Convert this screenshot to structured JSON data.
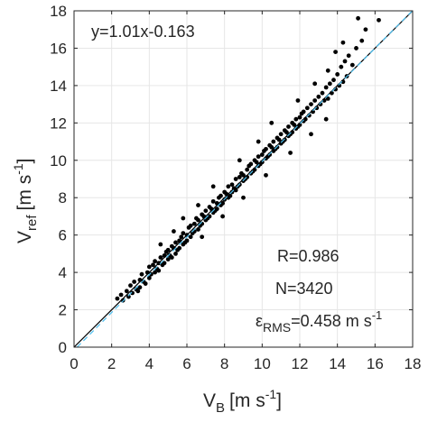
{
  "chart_data": {
    "type": "scatter",
    "xlabel": {
      "main": "V",
      "sub": "B",
      "unit": "[m s",
      "exp": "-1",
      "close": "]"
    },
    "ylabel": {
      "main": "V",
      "sub": "ref",
      "unit": "[m s",
      "exp": "-1",
      "close": "]"
    },
    "xlim": [
      0,
      18
    ],
    "ylim": [
      0,
      18
    ],
    "xticks": [
      "0",
      "2",
      "4",
      "6",
      "8",
      "10",
      "12",
      "14",
      "16",
      "18"
    ],
    "yticks": [
      "0",
      "2",
      "4",
      "6",
      "8",
      "10",
      "12",
      "14",
      "16",
      "18"
    ],
    "grid": true,
    "fit_equation": "y=1.01x-0.163",
    "fit": {
      "slope": 1.01,
      "intercept": -0.163
    },
    "stats": {
      "r": "R=0.986",
      "n": "N=3420",
      "rms_symbol": "ε",
      "rms_sub": "RMS",
      "rms_value": "=0.458 m s",
      "rms_exp": "-1"
    },
    "marker_color": "#000000",
    "fit_line_color": "#4dbeee",
    "identity_line_color": "#000000",
    "points": [
      [
        2.3,
        2.6
      ],
      [
        2.5,
        2.8
      ],
      [
        2.6,
        2.5
      ],
      [
        2.8,
        3.0
      ],
      [
        2.9,
        2.7
      ],
      [
        3.0,
        3.3
      ],
      [
        3.1,
        2.9
      ],
      [
        3.2,
        3.5
      ],
      [
        3.3,
        3.1
      ],
      [
        3.4,
        3.0
      ],
      [
        3.5,
        3.6
      ],
      [
        3.5,
        3.2
      ],
      [
        3.6,
        3.9
      ],
      [
        3.7,
        3.5
      ],
      [
        3.8,
        3.4
      ],
      [
        3.9,
        4.0
      ],
      [
        4.0,
        3.7
      ],
      [
        4.0,
        4.3
      ],
      [
        4.1,
        3.9
      ],
      [
        4.2,
        4.4
      ],
      [
        4.3,
        4.0
      ],
      [
        4.3,
        4.6
      ],
      [
        4.4,
        4.2
      ],
      [
        4.5,
        4.5
      ],
      [
        4.5,
        4.1
      ],
      [
        4.6,
        4.8
      ],
      [
        4.7,
        4.4
      ],
      [
        4.8,
        4.9
      ],
      [
        4.8,
        4.5
      ],
      [
        4.9,
        5.1
      ],
      [
        5.0,
        4.7
      ],
      [
        5.0,
        5.2
      ],
      [
        5.1,
        4.9
      ],
      [
        5.2,
        5.4
      ],
      [
        5.2,
        4.8
      ],
      [
        5.3,
        5.3
      ],
      [
        5.4,
        5.0
      ],
      [
        5.4,
        5.6
      ],
      [
        5.5,
        5.2
      ],
      [
        5.6,
        5.7
      ],
      [
        5.6,
        5.3
      ],
      [
        5.7,
        5.9
      ],
      [
        5.8,
        5.5
      ],
      [
        5.8,
        6.1
      ],
      [
        5.9,
        5.6
      ],
      [
        6.0,
        6.0
      ],
      [
        6.0,
        5.7
      ],
      [
        6.1,
        6.4
      ],
      [
        6.2,
        5.9
      ],
      [
        6.2,
        6.5
      ],
      [
        6.3,
        6.1
      ],
      [
        6.4,
        6.6
      ],
      [
        6.4,
        6.2
      ],
      [
        6.5,
        6.9
      ],
      [
        6.6,
        6.3
      ],
      [
        6.6,
        6.8
      ],
      [
        6.7,
        6.5
      ],
      [
        6.8,
        7.1
      ],
      [
        6.8,
        6.6
      ],
      [
        6.9,
        7.0
      ],
      [
        7.0,
        6.8
      ],
      [
        7.0,
        7.3
      ],
      [
        7.1,
        6.9
      ],
      [
        7.2,
        7.5
      ],
      [
        7.2,
        7.0
      ],
      [
        7.3,
        7.4
      ],
      [
        7.4,
        7.2
      ],
      [
        7.4,
        7.8
      ],
      [
        7.5,
        7.3
      ],
      [
        7.6,
        7.7
      ],
      [
        7.6,
        7.4
      ],
      [
        7.7,
        8.0
      ],
      [
        7.8,
        7.6
      ],
      [
        7.8,
        8.1
      ],
      [
        7.9,
        7.7
      ],
      [
        8.0,
        8.3
      ],
      [
        8.0,
        7.9
      ],
      [
        8.1,
        8.2
      ],
      [
        8.2,
        8.0
      ],
      [
        8.2,
        8.6
      ],
      [
        8.3,
        8.1
      ],
      [
        8.4,
        8.7
      ],
      [
        8.4,
        8.3
      ],
      [
        8.5,
        8.5
      ],
      [
        8.6,
        8.4
      ],
      [
        8.6,
        9.0
      ],
      [
        8.7,
        8.6
      ],
      [
        8.8,
        9.1
      ],
      [
        8.8,
        8.7
      ],
      [
        8.9,
        9.3
      ],
      [
        9.0,
        8.9
      ],
      [
        9.0,
        9.2
      ],
      [
        9.1,
        9.0
      ],
      [
        9.2,
        9.5
      ],
      [
        9.2,
        9.1
      ],
      [
        9.3,
        9.7
      ],
      [
        9.4,
        9.3
      ],
      [
        9.4,
        9.8
      ],
      [
        9.5,
        9.4
      ],
      [
        9.6,
        10.0
      ],
      [
        9.6,
        9.5
      ],
      [
        9.7,
        9.9
      ],
      [
        9.8,
        9.7
      ],
      [
        9.8,
        10.2
      ],
      [
        9.9,
        9.8
      ],
      [
        10.0,
        10.3
      ],
      [
        10.0,
        9.9
      ],
      [
        10.1,
        10.5
      ],
      [
        10.2,
        10.1
      ],
      [
        10.2,
        10.6
      ],
      [
        10.3,
        10.2
      ],
      [
        10.4,
        10.8
      ],
      [
        10.4,
        10.3
      ],
      [
        10.5,
        10.7
      ],
      [
        10.6,
        10.5
      ],
      [
        10.6,
        11.0
      ],
      [
        10.7,
        10.6
      ],
      [
        10.8,
        11.2
      ],
      [
        10.8,
        10.7
      ],
      [
        10.9,
        11.1
      ],
      [
        11.0,
        10.9
      ],
      [
        11.0,
        11.4
      ],
      [
        11.1,
        11.0
      ],
      [
        11.2,
        11.6
      ],
      [
        11.2,
        11.1
      ],
      [
        11.3,
        11.5
      ],
      [
        11.4,
        11.3
      ],
      [
        11.4,
        11.8
      ],
      [
        11.5,
        11.4
      ],
      [
        11.6,
        12.0
      ],
      [
        11.6,
        11.5
      ],
      [
        11.7,
        11.9
      ],
      [
        11.8,
        11.7
      ],
      [
        11.8,
        12.2
      ],
      [
        11.9,
        11.8
      ],
      [
        12.0,
        12.3
      ],
      [
        12.0,
        11.9
      ],
      [
        12.1,
        12.5
      ],
      [
        12.2,
        12.1
      ],
      [
        12.2,
        12.6
      ],
      [
        12.3,
        12.2
      ],
      [
        12.4,
        12.8
      ],
      [
        12.5,
        12.4
      ],
      [
        12.6,
        13.0
      ],
      [
        12.7,
        12.6
      ],
      [
        12.8,
        13.2
      ],
      [
        12.9,
        12.8
      ],
      [
        13.0,
        13.4
      ],
      [
        13.1,
        13.0
      ],
      [
        13.2,
        13.6
      ],
      [
        13.3,
        13.2
      ],
      [
        13.4,
        13.9
      ],
      [
        13.5,
        13.3
      ],
      [
        13.6,
        14.1
      ],
      [
        13.7,
        13.6
      ],
      [
        13.8,
        14.3
      ],
      [
        13.9,
        13.8
      ],
      [
        14.0,
        14.6
      ],
      [
        14.1,
        14.0
      ],
      [
        14.2,
        15.0
      ],
      [
        14.3,
        14.2
      ],
      [
        14.4,
        15.3
      ],
      [
        14.5,
        14.5
      ],
      [
        14.6,
        15.6
      ],
      [
        14.8,
        15.1
      ],
      [
        15.0,
        16.0
      ],
      [
        15.1,
        17.6
      ],
      [
        15.3,
        16.4
      ],
      [
        15.5,
        17.0
      ],
      [
        16.2,
        17.5
      ],
      [
        13.9,
        15.8
      ],
      [
        14.3,
        16.3
      ],
      [
        12.8,
        14.1
      ],
      [
        13.5,
        14.8
      ],
      [
        11.9,
        13.2
      ],
      [
        10.5,
        12.0
      ],
      [
        9.8,
        11.0
      ],
      [
        8.8,
        10.0
      ],
      [
        7.4,
        8.6
      ],
      [
        6.6,
        7.6
      ],
      [
        5.3,
        6.2
      ],
      [
        11.5,
        10.4
      ],
      [
        10.2,
        9.2
      ],
      [
        9.0,
        8.0
      ],
      [
        7.9,
        7.0
      ],
      [
        6.8,
        5.9
      ],
      [
        12.6,
        11.4
      ],
      [
        13.4,
        12.2
      ],
      [
        5.8,
        6.9
      ],
      [
        4.6,
        5.5
      ]
    ]
  }
}
